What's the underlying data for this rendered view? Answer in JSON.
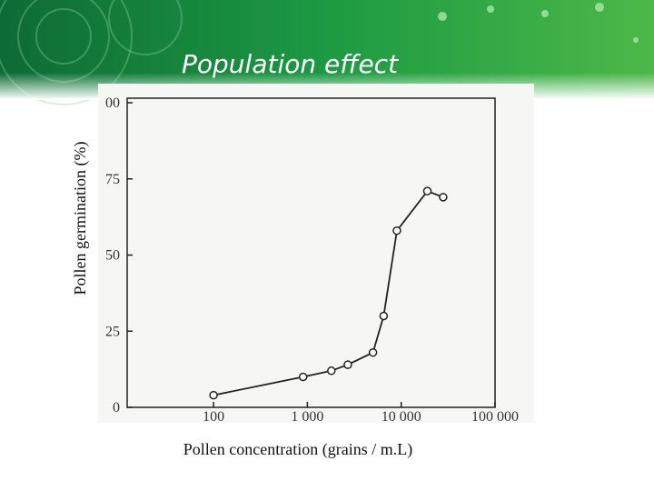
{
  "slide_title": "Population effect",
  "chart_data": {
    "type": "line",
    "x_label": "Pollen concentration (grains / m.L)",
    "y_label": "Pollen germination (%)",
    "x": [
      100,
      900,
      1800,
      2700,
      5000,
      6500,
      9000,
      19000,
      28000
    ],
    "series": [
      {
        "color": "#222222",
        "values": [
          4,
          10,
          12,
          14,
          18,
          30,
          58,
          71,
          69
        ]
      }
    ],
    "xscale": "log",
    "xlim": [
      12,
      100000
    ],
    "xticks": [
      100,
      {
        "value": 1000,
        "label": "1 000"
      },
      {
        "value": 10000,
        "label": "10 000"
      },
      {
        "value": 100000,
        "label": "100 000"
      }
    ],
    "ylim": [
      0,
      100
    ],
    "yticks": [
      0,
      25,
      50,
      75,
      {
        "value": 100,
        "label": "00"
      }
    ]
  }
}
